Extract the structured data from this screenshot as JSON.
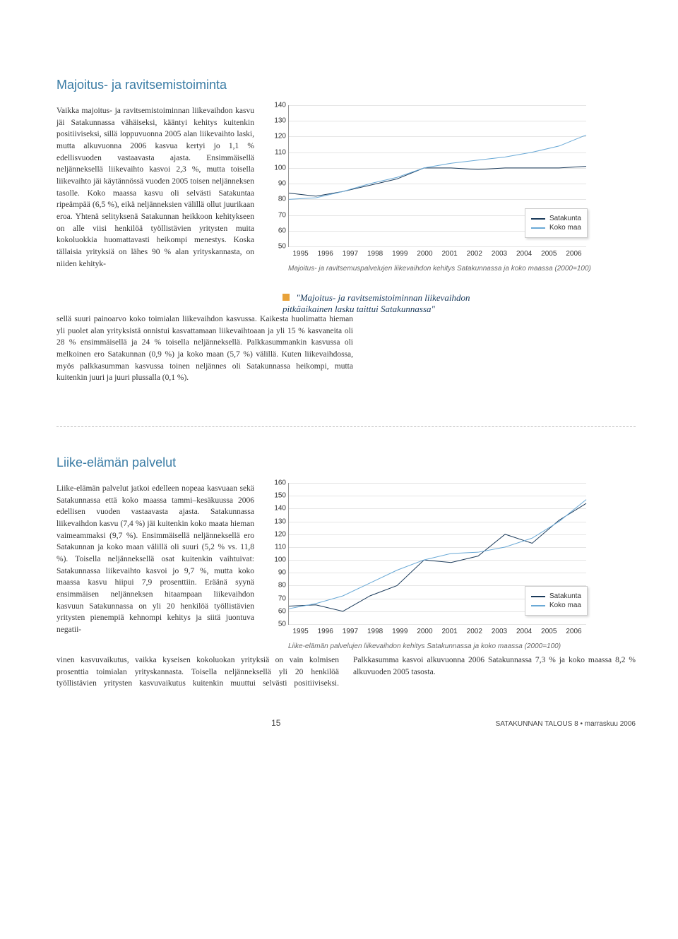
{
  "section1": {
    "title": "Majoitus- ja ravitsemistoiminta",
    "para1": "Vaikka majoitus- ja ravitsemistoiminnan liikevaihdon kasvu jäi Satakunnassa vähäiseksi, kääntyi kehitys kuitenkin positiiviseksi, sillä loppuvuonna 2005 alan liikevaihto laski, mutta alkuvuonna 2006 kasvua kertyi jo 1,1 % edellisvuoden vastaavasta ajasta. Ensimmäisellä neljänneksellä liikevaihto kasvoi 2,3 %, mutta toisella liikevaihto jäi käytännössä vuoden 2005 toisen neljänneksen tasolle. Koko maassa kasvu oli selvästi Satakuntaa ripeämpää (6,5 %), eikä neljänneksien välillä ollut juurikaan eroa. Yhtenä selityksenä Satakunnan heikkoon kehitykseen on alle viisi henkilöä työllistävien yritysten muita kokoluokkia huomattavasti heikompi menestys. Koska tällaisia yrityksiä on lähes 90 % alan yrityskannasta, on niiden kehityksellä suuri painoarvo koko toimialan liikevaihdon kasvussa. Kaikesta huolimatta hieman yli puolet alan yrityksistä onnistui kasvattamaan liikevaihtoaan ja yli 15 % kasvaneita oli 28 % ensimmäisellä ja 24 % toisella neljänneksellä. Palkkasummankin kasvussa oli melkoinen ero Satakunnan (0,9 %) ja koko maan (5,7 %) välillä. Kuten liikevaihdossa, myös palkkasumman kasvussa toinen neljännes oli Satakunnassa heikompi, mutta kuitenkin juuri ja juuri plussalla (0,1 %).",
    "chart": {
      "type": "line",
      "ylim": [
        50,
        140
      ],
      "ytick_step": 10,
      "xlabels": [
        "1995",
        "1996",
        "1997",
        "1998",
        "1999",
        "2000",
        "2001",
        "2002",
        "2003",
        "2004",
        "2005",
        "2006"
      ],
      "series": [
        {
          "name": "Satakunta",
          "color": "#1a3a5a",
          "values": [
            84,
            82,
            85,
            89,
            93,
            100,
            100,
            99,
            100,
            100,
            100,
            101
          ]
        },
        {
          "name": "Koko maa",
          "color": "#6aa9d6",
          "values": [
            80,
            81,
            85,
            90,
            94,
            100,
            103,
            105,
            107,
            110,
            114,
            121
          ]
        }
      ],
      "caption": "Majoitus- ja ravitsemuspalvelujen liikevaihdon kehitys Satakunnassa ja koko maassa (2000=100)",
      "background_color": "#ffffff",
      "grid_color": "#e5e5e5"
    },
    "callout": "\"Majoitus- ja ravitsemistoiminnan liikevaihdon pitkäaikainen lasku taittui Satakunnassa\""
  },
  "section2": {
    "title": "Liike-elämän palvelut",
    "para1": "Liike-elämän palvelut jatkoi edelleen nopeaa kasvuaan sekä Satakunnassa että koko maassa tammi–kesäkuussa 2006 edellisen vuoden vastaavasta ajasta. Satakunnassa liikevaihdon kasvu (7,4 %) jäi kuitenkin koko maata hieman vaimeammaksi (9,7 %). Ensimmäisellä neljänneksellä ero Satakunnan ja koko maan välillä oli suuri (5,2 % vs. 11,8 %). Toisella neljänneksellä osat kuitenkin vaihtuivat: Satakunnassa liikevaihto kasvoi jo 9,7 %, mutta koko maassa kasvu hiipui 7,9 prosenttiin. Eräänä syynä ensimmäisen neljänneksen hitaampaan liikevaihdon kasvuun Satakunnassa on yli 20 henkilöä työllistävien yritysten pienempiä kehnompi kehitys ja siitä juontuva negatii-",
    "para2": "vinen kasvuvaikutus, vaikka kyseisen kokoluokan yrityksiä on vain kolmisen prosenttia toimialan yrityskannasta. Toisella neljänneksellä yli 20 henkilöä työllistävien yritysten kasvuvaikutus kuitenkin muuttui selvästi positiiviseksi. Palkkasumma kasvoi alkuvuonna 2006 Satakunnassa 7,3 % ja koko maassa 8,2 % alkuvuoden 2005 tasosta.",
    "chart": {
      "type": "line",
      "ylim": [
        50,
        160
      ],
      "ytick_step": 10,
      "xlabels": [
        "1995",
        "1996",
        "1997",
        "1998",
        "1999",
        "2000",
        "2001",
        "2002",
        "2003",
        "2004",
        "2005",
        "2006"
      ],
      "series": [
        {
          "name": "Satakunta",
          "color": "#1a3a5a",
          "values": [
            64,
            65,
            60,
            72,
            80,
            100,
            98,
            103,
            120,
            113,
            131,
            144
          ]
        },
        {
          "name": "Koko maa",
          "color": "#6aa9d6",
          "values": [
            62,
            66,
            72,
            82,
            92,
            100,
            105,
            106,
            110,
            117,
            130,
            147
          ]
        }
      ],
      "caption": "Liike-elämän palvelujen liikevaihdon kehitys Satakunnassa ja koko maassa (2000=100)",
      "background_color": "#ffffff",
      "grid_color": "#e5e5e5"
    }
  },
  "footer": {
    "page": "15",
    "right": "SATAKUNNAN TALOUS 8 • marraskuu 2006"
  }
}
